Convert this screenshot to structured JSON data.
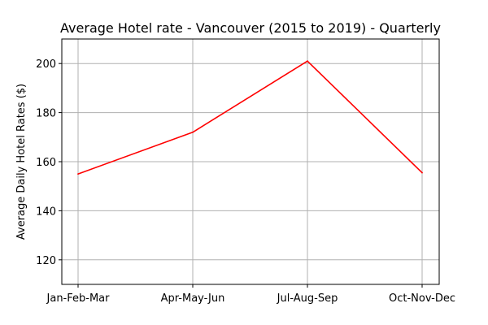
{
  "chart_data": {
    "type": "line",
    "title": "Average Hotel rate - Vancouver (2015 to 2019) - Quarterly",
    "xlabel": "",
    "ylabel": "Average Daily Hotel Rates ($)",
    "categories": [
      "Jan-Feb-Mar",
      "Apr-May-Jun",
      "Jul-Aug-Sep",
      "Oct-Nov-Dec"
    ],
    "series": [
      {
        "values": [
          155,
          172,
          201,
          155.5
        ],
        "color": "#ff0000"
      }
    ],
    "ylim": [
      110,
      210
    ],
    "yticks": [
      120,
      140,
      160,
      180,
      200
    ],
    "ytick_labels": [
      "120",
      "140",
      "160",
      "180",
      "200"
    ],
    "grid": true,
    "grid_color": "#b0b0b0",
    "legend": "none"
  }
}
